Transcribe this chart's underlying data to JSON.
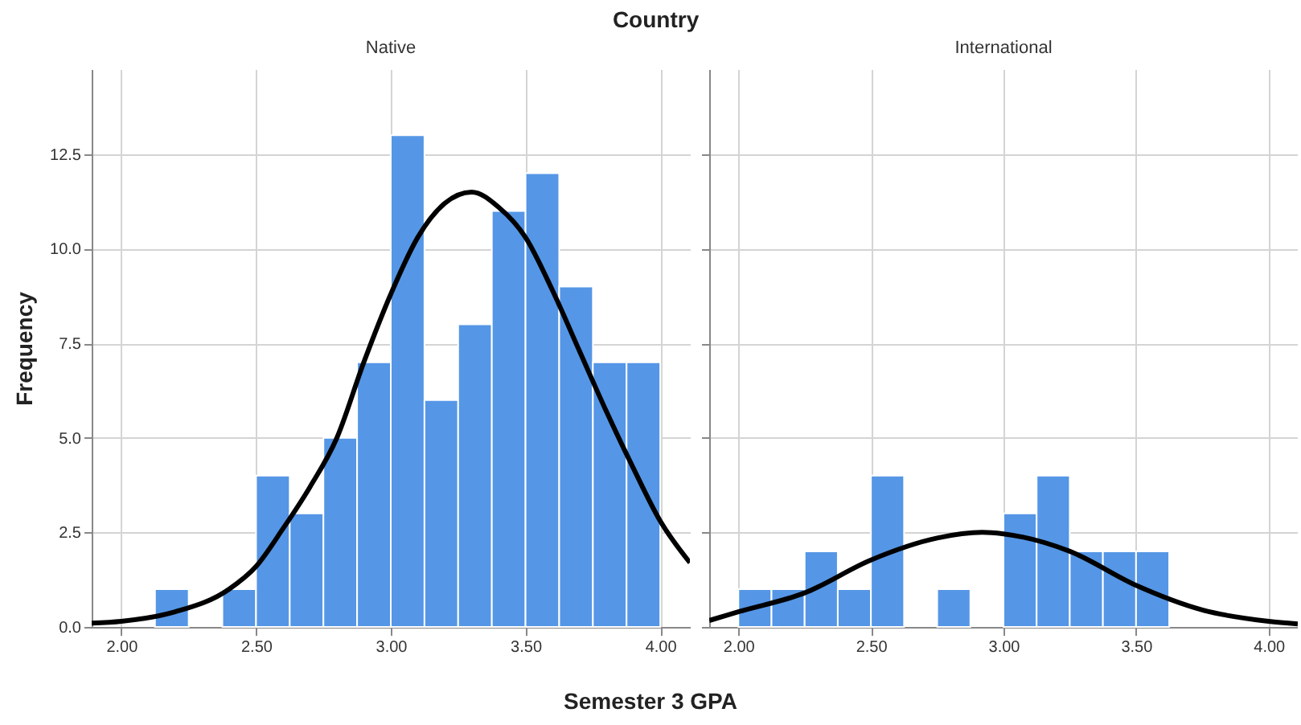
{
  "chart_data": [
    {
      "type": "histogram",
      "title": "Native",
      "xlabel": "Semester 3 GPA",
      "ylabel": "Frequency",
      "annotations": [
        "Country"
      ],
      "color": "#5596e6",
      "grid": true,
      "bins": [
        2.125,
        2.25,
        2.375,
        2.5,
        2.625,
        2.75,
        2.875,
        3.0,
        3.125,
        3.25,
        3.375,
        3.5,
        3.625,
        3.75,
        3.875,
        4.0
      ],
      "values": [
        1,
        0,
        1,
        4,
        3,
        5,
        7,
        13,
        6,
        8,
        11,
        12,
        9,
        7,
        7
      ],
      "series": [
        {
          "type": "line",
          "color": "#000000",
          "x": [
            1.89,
            2.0,
            2.2,
            2.4,
            2.5,
            2.6,
            2.7,
            2.8,
            2.9,
            3.0,
            3.1,
            3.2,
            3.3,
            3.4,
            3.5,
            3.6,
            3.7,
            3.8,
            3.9,
            4.0,
            4.11
          ],
          "values": [
            0.1,
            0.15,
            0.4,
            1.0,
            1.6,
            2.6,
            3.7,
            5.0,
            7.0,
            8.8,
            10.3,
            11.2,
            11.5,
            11.1,
            10.3,
            8.9,
            7.3,
            5.7,
            4.2,
            2.8,
            1.7
          ]
        }
      ],
      "xlim": [
        1.89,
        4.11
      ],
      "xticks": [
        {
          "value": 2,
          "label": "2.00"
        },
        {
          "value": 2.5,
          "label": "2.50"
        },
        {
          "value": 3,
          "label": "3.00"
        },
        {
          "value": 3.5,
          "label": "3.50"
        },
        {
          "value": 4,
          "label": "4.00"
        }
      ],
      "ylim": [
        0,
        14.75
      ],
      "yticks": [
        {
          "value": 0,
          "label": "0.0"
        },
        {
          "value": 2.5,
          "label": "2.5"
        },
        {
          "value": 5,
          "label": "5.0"
        },
        {
          "value": 7.5,
          "label": "7.5"
        },
        {
          "value": 10,
          "label": "10.0"
        },
        {
          "value": 12.5,
          "label": "12.5"
        }
      ]
    },
    {
      "type": "histogram",
      "title": "International",
      "color": "#5596e6",
      "grid": true,
      "tick_labels": "x",
      "bins": [
        2.0,
        2.125,
        2.25,
        2.375,
        2.5,
        2.625,
        2.75,
        2.875,
        3.0,
        3.125,
        3.25,
        3.375,
        3.5,
        3.625
      ],
      "values": [
        1,
        1,
        2,
        1,
        4,
        0,
        1,
        0,
        3,
        4,
        2,
        2,
        2
      ],
      "series": [
        {
          "type": "line",
          "color": "#000000",
          "x": [
            1.89,
            2.0,
            2.25,
            2.5,
            2.75,
            2.92,
            3.0,
            3.25,
            3.5,
            3.75,
            4.0,
            4.11
          ],
          "values": [
            0.17,
            0.4,
            0.9,
            1.77,
            2.35,
            2.5,
            2.46,
            2.0,
            1.1,
            0.45,
            0.15,
            0.08
          ]
        }
      ],
      "xlim": [
        1.89,
        4.11
      ],
      "xticks": [
        {
          "value": 2,
          "label": "2.00"
        },
        {
          "value": 2.5,
          "label": "2.50"
        },
        {
          "value": 3,
          "label": "3.00"
        },
        {
          "value": 3.5,
          "label": "3.50"
        },
        {
          "value": 4,
          "label": "4.00"
        }
      ],
      "ylim": [
        0,
        14.75
      ],
      "yticks": [
        {
          "value": 0,
          "label": null
        },
        {
          "value": 2.5,
          "label": null
        },
        {
          "value": 5,
          "label": null
        },
        {
          "value": 7.5,
          "label": null
        },
        {
          "value": 10,
          "label": null
        },
        {
          "value": 12.5,
          "label": null
        }
      ]
    }
  ]
}
